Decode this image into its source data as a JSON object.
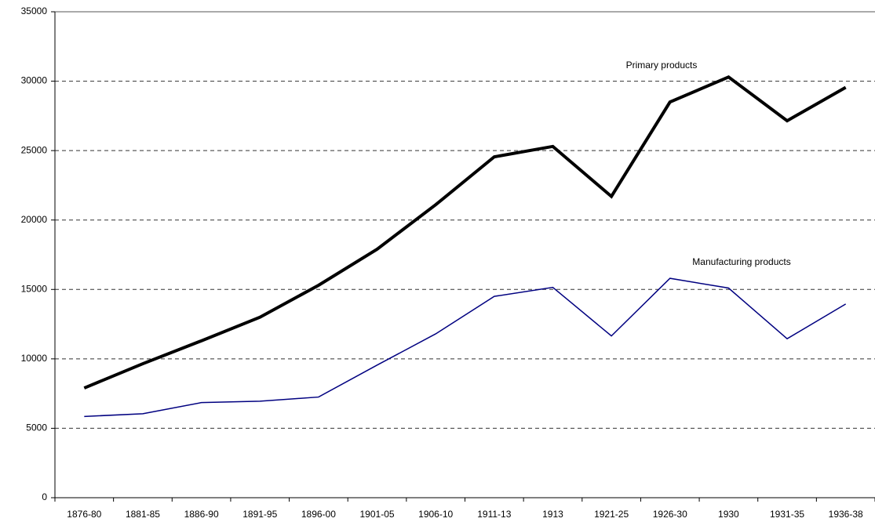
{
  "chart_data": {
    "type": "line",
    "categories": [
      "1876-80",
      "1881-85",
      "1886-90",
      "1891-95",
      "1896-00",
      "1901-05",
      "1906-10",
      "1911-13",
      "1913",
      "1921-25",
      "1926-30",
      "1930",
      "1931-35",
      "1936-38"
    ],
    "series": [
      {
        "name": "Primary products",
        "color": "#000000",
        "values": [
          7900,
          9650,
          11300,
          13000,
          15300,
          17900,
          21100,
          24550,
          25300,
          21700,
          28500,
          30300,
          27150,
          29550
        ]
      },
      {
        "name": "Manufacturing products",
        "color": "#000080",
        "values": [
          5850,
          6050,
          6850,
          6950,
          7250,
          9550,
          11800,
          14500,
          15150,
          11650,
          15800,
          15100,
          11450,
          13950
        ]
      }
    ],
    "ylim": [
      0,
      35000
    ],
    "yticks": [
      0,
      5000,
      10000,
      15000,
      20000,
      25000,
      30000,
      35000
    ],
    "grid": true
  }
}
